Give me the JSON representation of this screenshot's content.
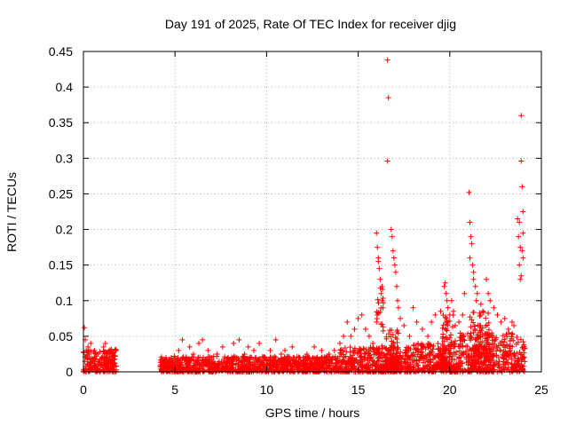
{
  "chart_data": {
    "type": "scatter",
    "title": "Day 191 of 2025, Rate Of TEC Index for receiver djig",
    "xlabel": "GPS time / hours",
    "ylabel": "ROTI / TECUs",
    "xlim": [
      0,
      25
    ],
    "ylim": [
      0,
      0.45
    ],
    "x_ticks": [
      {
        "value": 0,
        "label": "0"
      },
      {
        "value": 5,
        "label": "5"
      },
      {
        "value": 10,
        "label": "10"
      },
      {
        "value": 15,
        "label": "15"
      },
      {
        "value": 20,
        "label": "20"
      },
      {
        "value": 25,
        "label": "25"
      }
    ],
    "y_ticks": [
      {
        "value": 0,
        "label": "0"
      },
      {
        "value": 0.05,
        "label": "0.05"
      },
      {
        "value": 0.1,
        "label": "0.1"
      },
      {
        "value": 0.15,
        "label": "0.15"
      },
      {
        "value": 0.2,
        "label": "0.2"
      },
      {
        "value": 0.25,
        "label": "0.25"
      },
      {
        "value": 0.3,
        "label": "0.3"
      },
      {
        "value": 0.35,
        "label": "0.35"
      },
      {
        "value": 0.4,
        "label": "0.4"
      },
      {
        "value": 0.45,
        "label": "0.45"
      }
    ],
    "grid": true,
    "marker": "+",
    "series": [
      {
        "name": "ROTI",
        "color": "#ff0000",
        "points": [
          [
            0.05,
            0.062
          ],
          [
            0.1,
            0.045
          ],
          [
            0.15,
            0.03
          ],
          [
            0.2,
            0.02
          ],
          [
            0.25,
            0.035
          ],
          [
            0.3,
            0.025
          ],
          [
            0.4,
            0.04
          ],
          [
            0.5,
            0.018
          ],
          [
            0.6,
            0.03
          ],
          [
            0.7,
            0.022
          ],
          [
            0.8,
            0.015
          ],
          [
            0.9,
            0.028
          ],
          [
            1.0,
            0.02
          ],
          [
            1.1,
            0.035
          ],
          [
            1.2,
            0.04
          ],
          [
            1.3,
            0.025
          ],
          [
            1.4,
            0.018
          ],
          [
            1.5,
            0.012
          ],
          [
            1.6,
            0.02
          ],
          [
            1.7,
            0.008
          ],
          [
            0.3,
            0.01
          ],
          [
            0.8,
            0.005
          ],
          [
            1.3,
            0.006
          ],
          [
            4.3,
            0.012
          ],
          [
            4.5,
            0.008
          ],
          [
            4.8,
            0.02
          ],
          [
            5.0,
            0.015
          ],
          [
            5.2,
            0.03
          ],
          [
            5.4,
            0.045
          ],
          [
            5.6,
            0.02
          ],
          [
            5.8,
            0.035
          ],
          [
            6.0,
            0.025
          ],
          [
            6.3,
            0.04
          ],
          [
            6.5,
            0.045
          ],
          [
            6.8,
            0.03
          ],
          [
            7.0,
            0.02
          ],
          [
            7.3,
            0.025
          ],
          [
            7.6,
            0.035
          ],
          [
            7.9,
            0.02
          ],
          [
            8.2,
            0.04
          ],
          [
            8.5,
            0.045
          ],
          [
            8.8,
            0.025
          ],
          [
            9.0,
            0.035
          ],
          [
            9.3,
            0.03
          ],
          [
            9.6,
            0.04
          ],
          [
            9.9,
            0.02
          ],
          [
            10.2,
            0.03
          ],
          [
            10.5,
            0.045
          ],
          [
            10.8,
            0.025
          ],
          [
            11.0,
            0.03
          ],
          [
            11.4,
            0.035
          ],
          [
            11.8,
            0.02
          ],
          [
            12.2,
            0.025
          ],
          [
            12.6,
            0.035
          ],
          [
            13.0,
            0.03
          ],
          [
            13.4,
            0.025
          ],
          [
            13.7,
            0.03
          ],
          [
            14.0,
            0.04
          ],
          [
            14.2,
            0.05
          ],
          [
            14.4,
            0.07
          ],
          [
            14.6,
            0.05
          ],
          [
            14.8,
            0.06
          ],
          [
            15.0,
            0.075
          ],
          [
            15.2,
            0.08
          ],
          [
            15.4,
            0.06
          ],
          [
            15.6,
            0.05
          ],
          [
            15.8,
            0.04
          ],
          [
            16.0,
            0.07
          ],
          [
            16.0,
            0.195
          ],
          [
            16.05,
            0.175
          ],
          [
            16.1,
            0.16
          ],
          [
            16.1,
            0.155
          ],
          [
            16.15,
            0.145
          ],
          [
            16.2,
            0.13
          ],
          [
            16.25,
            0.11
          ],
          [
            16.3,
            0.1
          ],
          [
            16.35,
            0.09
          ],
          [
            16.6,
            0.438
          ],
          [
            16.65,
            0.385
          ],
          [
            16.6,
            0.296
          ],
          [
            16.8,
            0.2
          ],
          [
            16.85,
            0.19
          ],
          [
            16.9,
            0.17
          ],
          [
            16.95,
            0.16
          ],
          [
            17.0,
            0.15
          ],
          [
            17.05,
            0.14
          ],
          [
            17.1,
            0.12
          ],
          [
            17.15,
            0.1
          ],
          [
            17.2,
            0.09
          ],
          [
            17.3,
            0.075
          ],
          [
            17.5,
            0.065
          ],
          [
            17.8,
            0.05
          ],
          [
            18.0,
            0.09
          ],
          [
            18.2,
            0.07
          ],
          [
            18.5,
            0.06
          ],
          [
            18.8,
            0.05
          ],
          [
            19.0,
            0.07
          ],
          [
            19.2,
            0.08
          ],
          [
            19.5,
            0.085
          ],
          [
            19.7,
            0.12
          ],
          [
            19.75,
            0.125
          ],
          [
            19.8,
            0.11
          ],
          [
            19.85,
            0.1
          ],
          [
            19.9,
            0.09
          ],
          [
            20.0,
            0.08
          ],
          [
            20.1,
            0.1
          ],
          [
            20.2,
            0.085
          ],
          [
            20.3,
            0.065
          ],
          [
            20.5,
            0.07
          ],
          [
            20.7,
            0.08
          ],
          [
            20.8,
            0.11
          ],
          [
            21.05,
            0.252
          ],
          [
            21.1,
            0.21
          ],
          [
            21.15,
            0.19
          ],
          [
            21.2,
            0.18
          ],
          [
            21.1,
            0.16
          ],
          [
            21.25,
            0.15
          ],
          [
            21.3,
            0.14
          ],
          [
            21.3,
            0.13
          ],
          [
            21.4,
            0.12
          ],
          [
            21.45,
            0.1
          ],
          [
            21.5,
            0.11
          ],
          [
            21.7,
            0.095
          ],
          [
            21.8,
            0.085
          ],
          [
            22.0,
            0.13
          ],
          [
            22.1,
            0.11
          ],
          [
            22.2,
            0.1
          ],
          [
            22.4,
            0.09
          ],
          [
            22.6,
            0.08
          ],
          [
            22.8,
            0.07
          ],
          [
            23.0,
            0.075
          ],
          [
            23.2,
            0.06
          ],
          [
            23.4,
            0.07
          ],
          [
            23.5,
            0.065
          ],
          [
            23.7,
            0.215
          ],
          [
            23.8,
            0.21
          ],
          [
            23.75,
            0.19
          ],
          [
            23.85,
            0.175
          ],
          [
            23.8,
            0.15
          ],
          [
            23.9,
            0.135
          ],
          [
            23.85,
            0.13
          ],
          [
            23.9,
            0.36
          ],
          [
            23.9,
            0.296
          ],
          [
            23.95,
            0.26
          ],
          [
            24.0,
            0.225
          ],
          [
            24.0,
            0.195
          ],
          [
            23.95,
            0.17
          ],
          [
            24.0,
            0.16
          ]
        ],
        "dense_bands": [
          {
            "x0": 0.0,
            "x1": 1.8,
            "y0": 0.0,
            "y1": 0.032
          },
          {
            "x0": 4.2,
            "x1": 14.0,
            "y0": 0.0,
            "y1": 0.022
          },
          {
            "x0": 14.0,
            "x1": 18.0,
            "y0": 0.0,
            "y1": 0.035
          },
          {
            "x0": 16.0,
            "x1": 16.4,
            "y0": 0.0,
            "y1": 0.12
          },
          {
            "x0": 16.5,
            "x1": 17.2,
            "y0": 0.0,
            "y1": 0.06
          },
          {
            "x0": 18.0,
            "x1": 20.5,
            "y0": 0.0,
            "y1": 0.04
          },
          {
            "x0": 19.6,
            "x1": 20.3,
            "y0": 0.0,
            "y1": 0.08
          },
          {
            "x0": 20.5,
            "x1": 23.5,
            "y0": 0.0,
            "y1": 0.055
          },
          {
            "x0": 21.0,
            "x1": 22.2,
            "y0": 0.0,
            "y1": 0.085
          },
          {
            "x0": 23.5,
            "x1": 24.1,
            "y0": 0.0,
            "y1": 0.05
          }
        ]
      }
    ]
  }
}
